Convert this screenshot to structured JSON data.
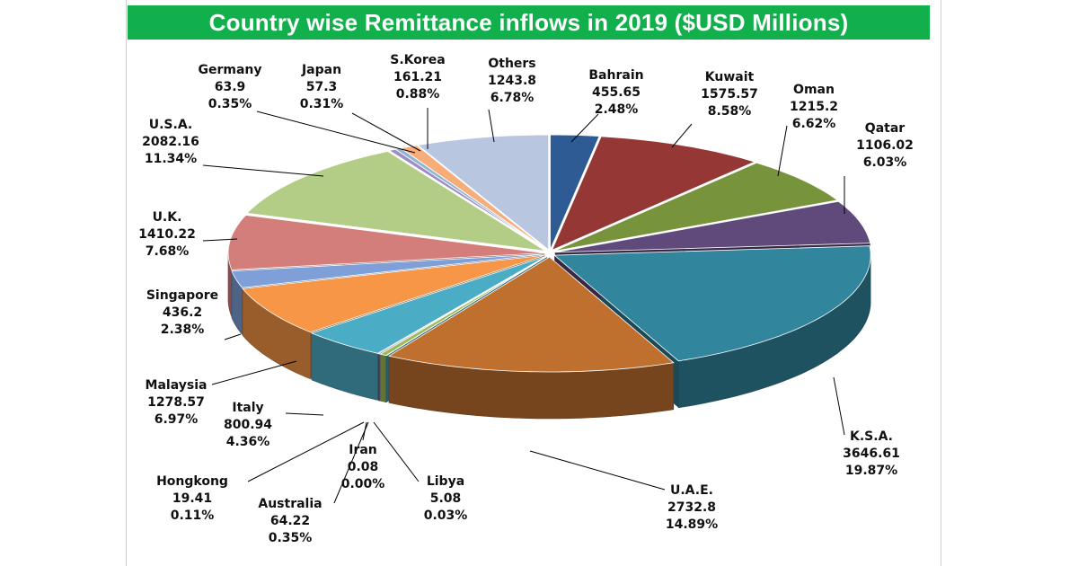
{
  "chart_data": {
    "type": "pie",
    "style": "3d-exploded",
    "title": "Country wise Remittance inflows in 2019 ($USD Millions)",
    "unit": "USD Millions",
    "slices": [
      {
        "name": "Bahrain",
        "value": "455.65",
        "pct": "2.48%",
        "color": "#2e5b94"
      },
      {
        "name": "Kuwait",
        "value": "1575.57",
        "pct": "8.58%",
        "color": "#953735"
      },
      {
        "name": "Oman",
        "value": "1215.2",
        "pct": "6.62%",
        "color": "#77933c"
      },
      {
        "name": "Qatar",
        "value": "1106.02",
        "pct": "6.03%",
        "color": "#604a7b"
      },
      {
        "name": "K.S.A.",
        "value": "3646.61",
        "pct": "19.87%",
        "color": "#31859c"
      },
      {
        "name": "U.A.E.",
        "value": "2732.8",
        "pct": "14.89%",
        "color": "#c0702e"
      },
      {
        "name": "Libya",
        "value": "5.08",
        "pct": "0.03%",
        "color": "#4bacc6"
      },
      {
        "name": "Iran",
        "value": "0.08",
        "pct": "0.00%",
        "color": "#f79646"
      },
      {
        "name": "Australia",
        "value": "64.22",
        "pct": "0.35%",
        "color": "#9bbb59"
      },
      {
        "name": "Hongkong",
        "value": "19.41",
        "pct": "0.11%",
        "color": "#8064a2"
      },
      {
        "name": "Italy",
        "value": "800.94",
        "pct": "4.36%",
        "color": "#4bacc6"
      },
      {
        "name": "Malaysia",
        "value": "1278.57",
        "pct": "6.97%",
        "color": "#f79646"
      },
      {
        "name": "Singapore",
        "value": "436.2",
        "pct": "2.38%",
        "color": "#7f9fd8"
      },
      {
        "name": "U.K.",
        "value": "1410.22",
        "pct": "7.68%",
        "color": "#d47e7c"
      },
      {
        "name": "U.S.A.",
        "value": "2082.16",
        "pct": "11.34%",
        "color": "#b3cd86"
      },
      {
        "name": "Germany",
        "value": "63.9",
        "pct": "0.35%",
        "color": "#9e8cc4"
      },
      {
        "name": "Japan",
        "value": "57.3",
        "pct": "0.31%",
        "color": "#8fb5d6"
      },
      {
        "name": "S.Korea",
        "value": "161.21",
        "pct": "0.88%",
        "color": "#f7ad7a"
      },
      {
        "name": "Others",
        "value": "1243.8",
        "pct": "6.78%",
        "color": "#b8c6e0"
      }
    ]
  }
}
